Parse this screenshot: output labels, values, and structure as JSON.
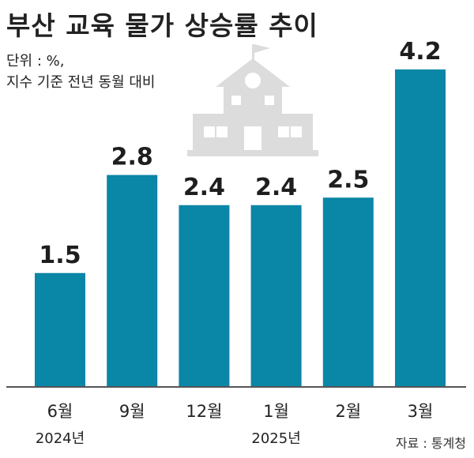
{
  "title": "부산 교육 물가 상승률 추이",
  "unit_line1": "단위 : %,",
  "unit_line2": "지수 기준 전년 동월 대비",
  "source": "자료 : 통계청",
  "colors": {
    "bar": "#0a86a6",
    "axis": "#555555",
    "icon": "#dcdcdc"
  },
  "icon": "school-building-icon",
  "chart_data": {
    "type": "bar",
    "title": "부산 교육 물가 상승률 추이",
    "categories": [
      "6월",
      "9월",
      "12월",
      "1월",
      "2월",
      "3월"
    ],
    "values": [
      1.5,
      2.8,
      2.4,
      2.4,
      2.5,
      4.2
    ],
    "value_labels": [
      "1.5",
      "2.8",
      "2.4",
      "2.4",
      "2.5",
      "4.2"
    ],
    "year_labels": [
      {
        "text": "2024년",
        "category_index": 0
      },
      {
        "text": "2025년",
        "category_index": 3
      }
    ],
    "xlabel": "",
    "ylabel": "",
    "grid": false,
    "legend": "none"
  }
}
